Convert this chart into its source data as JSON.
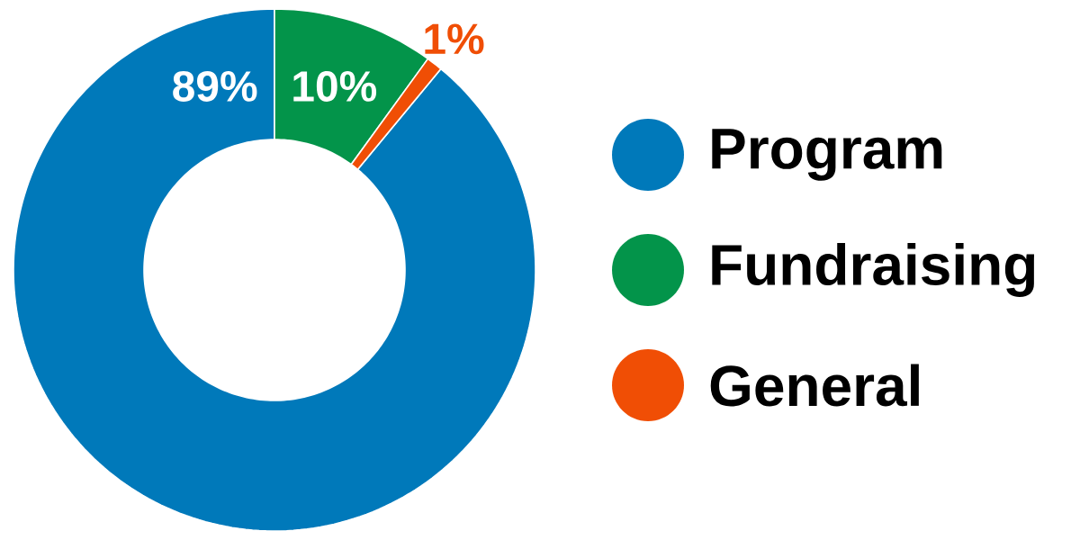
{
  "chart_data": {
    "type": "donut",
    "categories": [
      "Program",
      "Fundraising",
      "General"
    ],
    "values": [
      89,
      10,
      1
    ],
    "value_labels": [
      "89%",
      "10%",
      "1%"
    ],
    "colors": [
      "#0079ba",
      "#03944a",
      "#f04e05"
    ],
    "legend": "right"
  }
}
